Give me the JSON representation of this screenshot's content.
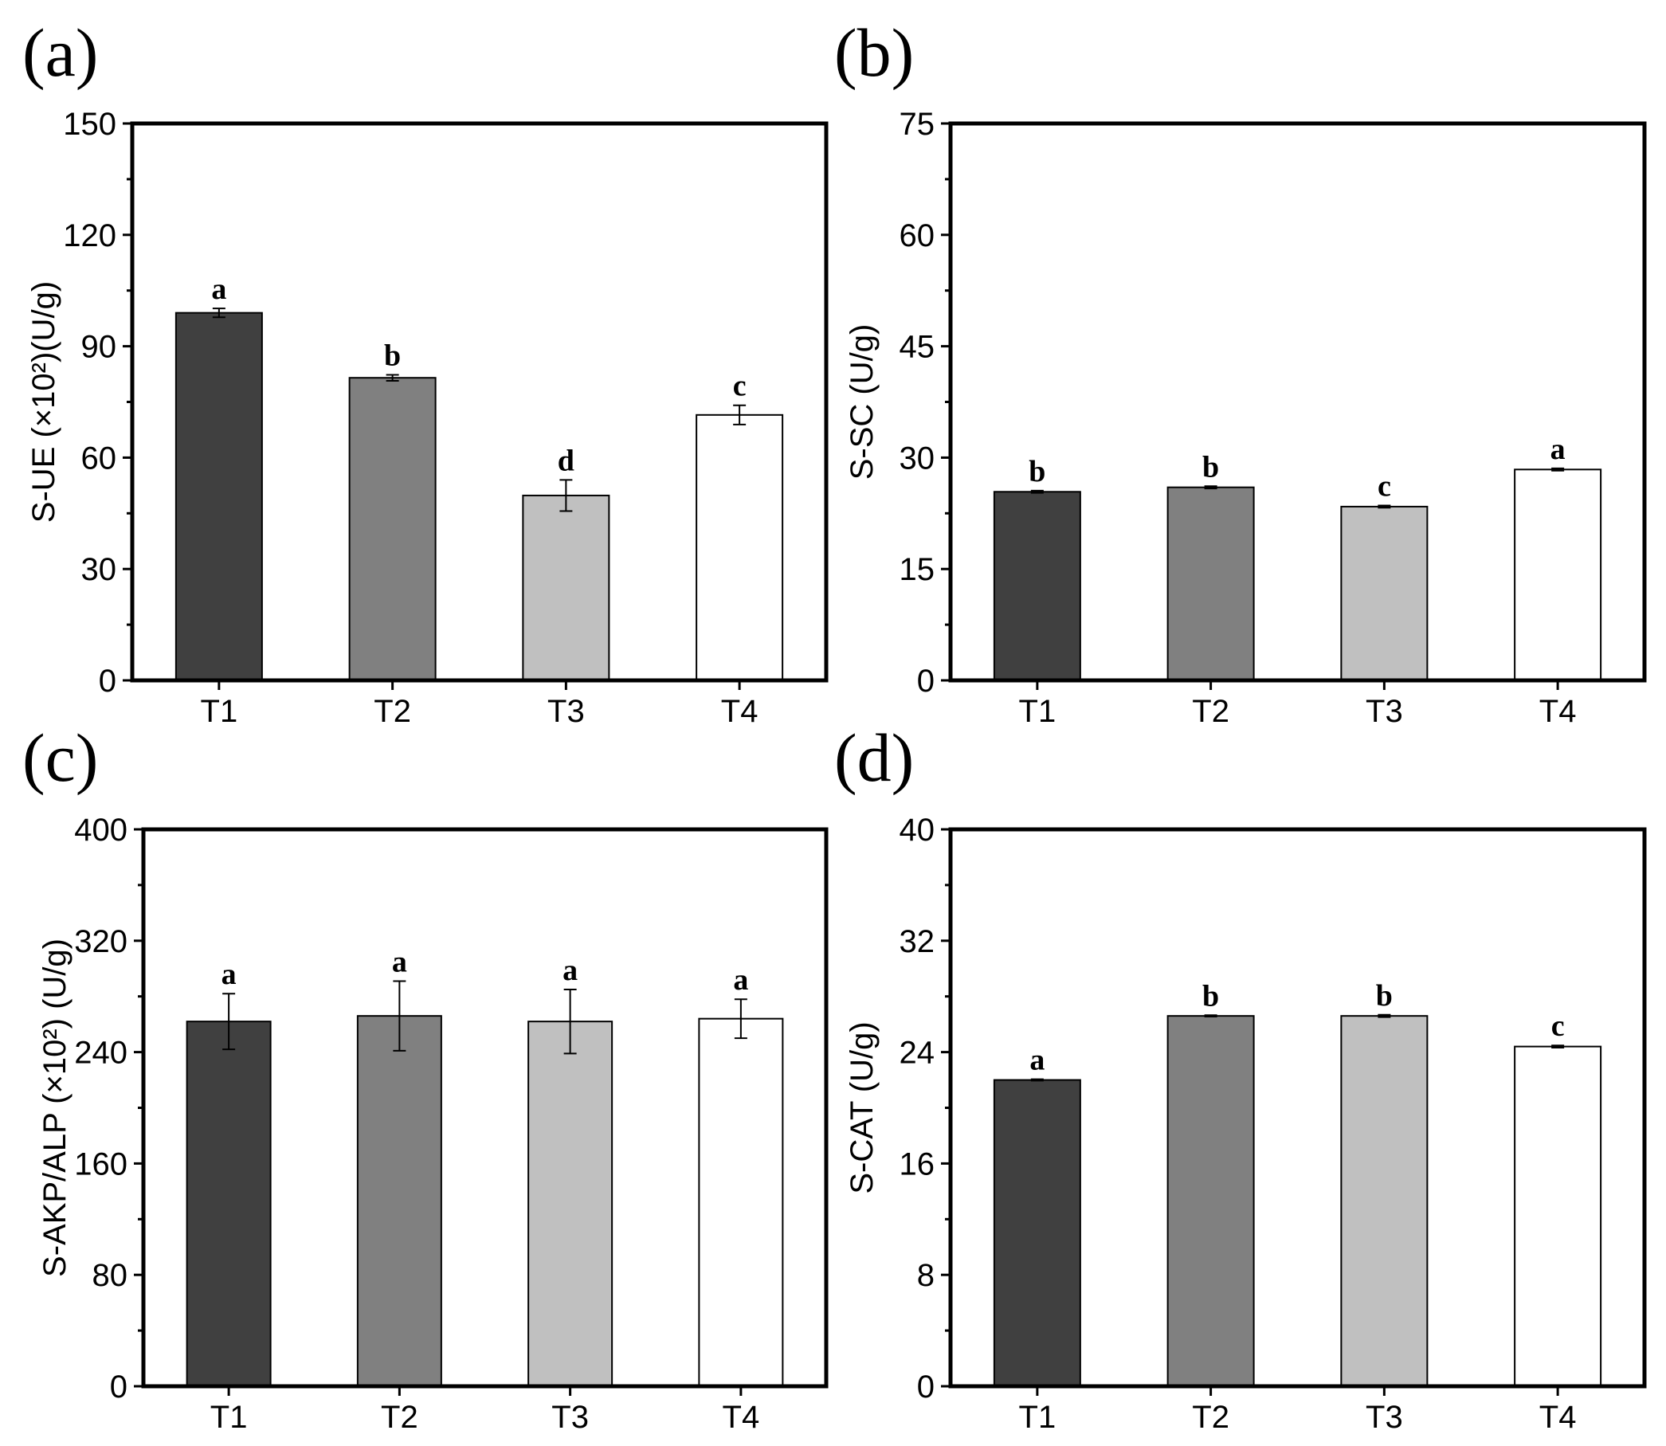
{
  "chart_data": [
    {
      "type": "bar",
      "panel": "(a)",
      "categories": [
        "T1",
        "T2",
        "T3",
        "T4"
      ],
      "values": [
        99.0,
        81.5,
        49.8,
        71.5
      ],
      "errors": [
        1.2,
        0.8,
        4.2,
        2.6
      ],
      "significance": [
        "a",
        "b",
        "d",
        "c"
      ],
      "colors": [
        "#404040",
        "#808080",
        "#c0c0c0",
        "#ffffff"
      ],
      "ylabel": "S-UE (×10²)(U/g)",
      "ylim": [
        0,
        150
      ],
      "yticks": [
        "0",
        "30",
        "60",
        "90",
        "120",
        "150"
      ]
    },
    {
      "type": "bar",
      "panel": "(b)",
      "categories": [
        "T1",
        "T2",
        "T3",
        "T4"
      ],
      "values": [
        25.4,
        26.0,
        23.4,
        28.4
      ],
      "errors": [
        0.15,
        0.15,
        0.15,
        0.15
      ],
      "significance": [
        "b",
        "b",
        "c",
        "a"
      ],
      "colors": [
        "#404040",
        "#808080",
        "#c0c0c0",
        "#ffffff"
      ],
      "ylabel": "S-SC (U/g)",
      "ylim": [
        0,
        75
      ],
      "yticks": [
        "0",
        "15",
        "30",
        "45",
        "60",
        "75"
      ]
    },
    {
      "type": "bar",
      "panel": "(c)",
      "categories": [
        "T1",
        "T2",
        "T3",
        "T4"
      ],
      "values": [
        262,
        266,
        262,
        264
      ],
      "errors": [
        20,
        25,
        23,
        14
      ],
      "significance": [
        "a",
        "a",
        "a",
        "a"
      ],
      "colors": [
        "#404040",
        "#808080",
        "#c0c0c0",
        "#ffffff"
      ],
      "ylabel": "S-AKP/ALP (×10²) (U/g)",
      "ylim": [
        0,
        400
      ],
      "yticks": [
        "0",
        "80",
        "160",
        "240",
        "320",
        "400"
      ]
    },
    {
      "type": "bar",
      "panel": "(d)",
      "categories": [
        "T1",
        "T2",
        "T3",
        "T4"
      ],
      "values": [
        22.0,
        26.6,
        26.6,
        24.4
      ],
      "errors": [
        0.05,
        0.05,
        0.08,
        0.08
      ],
      "significance": [
        "a",
        "b",
        "b",
        "c"
      ],
      "colors": [
        "#404040",
        "#808080",
        "#c0c0c0",
        "#ffffff"
      ],
      "ylabel": "S-CAT (U/g)",
      "ylim": [
        0,
        40
      ],
      "yticks": [
        "0",
        "8",
        "16",
        "24",
        "32",
        "40"
      ]
    }
  ]
}
